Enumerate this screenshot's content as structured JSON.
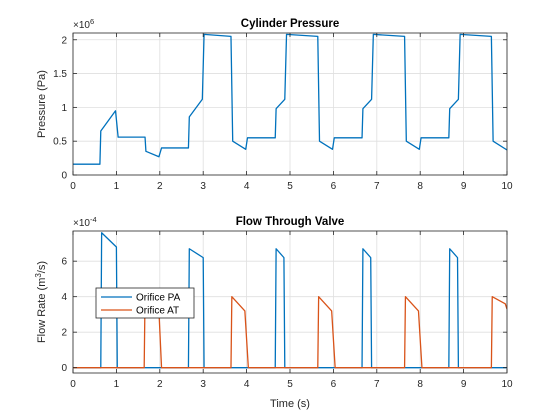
{
  "chart_data": [
    {
      "type": "line",
      "title": "Cylinder Pressure",
      "xlabel": "",
      "ylabel": "Pressure (Pa)",
      "exponent_label": "×10⁶",
      "exponent_base": "×10",
      "exponent_power": "6",
      "xlim": [
        0,
        10
      ],
      "ylim": [
        0,
        2.1
      ],
      "xticks": [
        0,
        1,
        2,
        3,
        4,
        5,
        6,
        7,
        8,
        9,
        10
      ],
      "yticks": [
        0,
        0.5,
        1,
        1.5,
        2
      ],
      "ytick_labels": [
        "0",
        "0.5",
        "1",
        "1.5",
        "2"
      ],
      "grid": true,
      "series": [
        {
          "color": "#0072BD",
          "x": [
            0,
            0.62,
            0.64,
            0.98,
            1.04,
            1.66,
            1.68,
            1.98,
            2.04,
            2.66,
            2.68,
            2.98,
            3.02,
            3.64,
            3.68,
            3.98,
            4.02,
            4.66,
            4.68,
            4.88,
            4.92,
            5.64,
            5.68,
            5.98,
            6.02,
            6.66,
            6.68,
            6.88,
            6.92,
            7.64,
            7.68,
            7.98,
            8.02,
            8.66,
            8.68,
            8.88,
            8.92,
            9.64,
            9.68,
            10
          ],
          "y": [
            0.16,
            0.16,
            0.65,
            0.95,
            0.56,
            0.56,
            0.35,
            0.27,
            0.4,
            0.4,
            0.86,
            1.12,
            2.08,
            2.05,
            0.5,
            0.38,
            0.55,
            0.55,
            0.98,
            1.12,
            2.08,
            2.05,
            0.5,
            0.38,
            0.55,
            0.55,
            0.98,
            1.12,
            2.08,
            2.05,
            0.5,
            0.38,
            0.55,
            0.55,
            0.98,
            1.12,
            2.08,
            2.05,
            0.5,
            0.37
          ]
        }
      ]
    },
    {
      "type": "line",
      "title": "Flow Through Valve",
      "xlabel": "Time (s)",
      "ylabel_main": "Flow Rate (m",
      "ylabel_sup": "3",
      "ylabel_end": "/s)",
      "exponent_label": "×10⁻⁴",
      "exponent_base": "×10",
      "exponent_power": "-4",
      "xlim": [
        0,
        10
      ],
      "ylim": [
        -0.3,
        7.7
      ],
      "xticks": [
        0,
        1,
        2,
        3,
        4,
        5,
        6,
        7,
        8,
        9,
        10
      ],
      "yticks": [
        0,
        2,
        4,
        6
      ],
      "ytick_labels": [
        "0",
        "2",
        "4",
        "6"
      ],
      "grid": true,
      "legend": {
        "placement": "middle-left",
        "entries": [
          "Orifice PA",
          "Orifice AT"
        ]
      },
      "series": [
        {
          "name": "Orifice PA",
          "color": "#0072BD",
          "x": [
            0,
            0.64,
            0.66,
            1.0,
            1.02,
            2.66,
            2.68,
            3.0,
            3.02,
            4.66,
            4.68,
            4.86,
            4.88,
            6.66,
            6.68,
            6.86,
            6.88,
            8.66,
            8.68,
            8.86,
            8.88,
            10
          ],
          "y": [
            0,
            0,
            7.6,
            6.8,
            0,
            0,
            6.7,
            6.2,
            0,
            0,
            6.7,
            6.2,
            0,
            0,
            6.7,
            6.2,
            0,
            0,
            6.7,
            6.2,
            0,
            0
          ]
        },
        {
          "name": "Orifice AT",
          "color": "#D95319",
          "x": [
            0,
            1.64,
            1.66,
            1.98,
            2.04,
            3.64,
            3.66,
            3.96,
            4.04,
            5.64,
            5.66,
            5.96,
            6.04,
            7.64,
            7.66,
            7.96,
            8.04,
            9.64,
            9.66,
            9.96,
            10
          ],
          "y": [
            0,
            0,
            4.0,
            3.2,
            0,
            0,
            4.0,
            3.2,
            0,
            0,
            4.0,
            3.2,
            0,
            0,
            4.0,
            3.2,
            0,
            0,
            4.0,
            3.6,
            3.3
          ]
        }
      ]
    }
  ]
}
